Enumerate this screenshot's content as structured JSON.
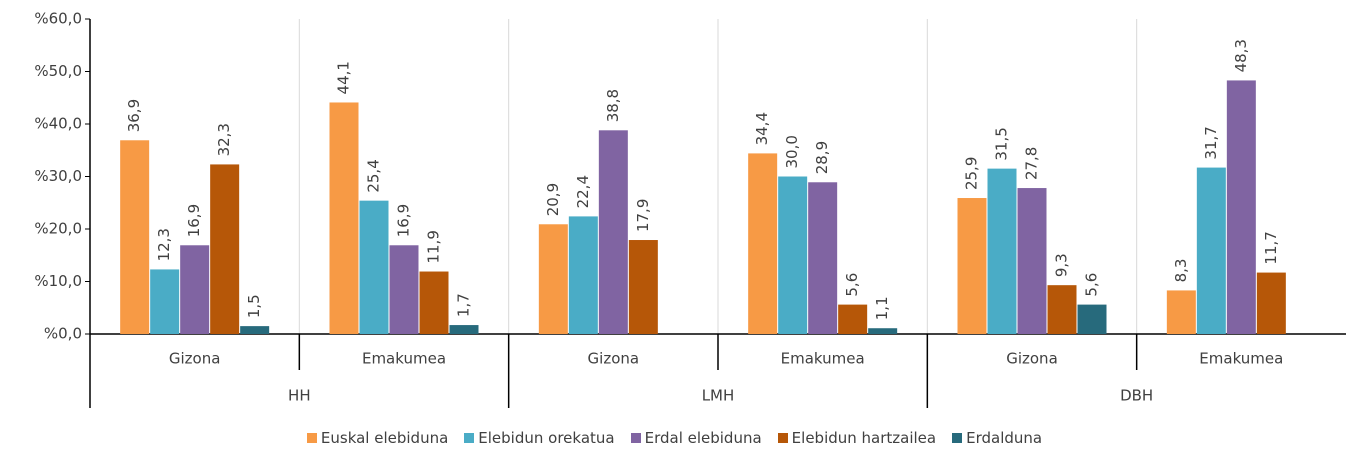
{
  "chart_data": {
    "type": "bar",
    "categories": [
      "Gizona",
      "Emakumea",
      "Gizona",
      "Emakumea",
      "Gizona",
      "Emakumea"
    ],
    "groups": [
      "HH",
      "LMH",
      "DBH"
    ],
    "series": [
      {
        "name": "Euskal elebiduna",
        "color": "#f79a45",
        "values": [
          36.9,
          44.1,
          20.9,
          34.4,
          25.9,
          8.3
        ],
        "value_labels": [
          "36,9",
          "44,1",
          "20,9",
          "34,4",
          "25,9",
          "8,3"
        ]
      },
      {
        "name": "Elebidun orekatua",
        "color": "#4aacc6",
        "values": [
          12.3,
          25.4,
          22.4,
          30.0,
          31.5,
          31.7
        ],
        "value_labels": [
          "12,3",
          "25,4",
          "22,4",
          "30,0",
          "31,5",
          "31,7"
        ]
      },
      {
        "name": "Erdal elebiduna",
        "color": "#8064a2",
        "values": [
          16.9,
          16.9,
          38.8,
          28.9,
          27.8,
          48.3
        ],
        "value_labels": [
          "16,9",
          "16,9",
          "38,8",
          "28,9",
          "27,8",
          "48,3"
        ]
      },
      {
        "name": "Elebidun hartzailea",
        "color": "#b65708",
        "values": [
          32.3,
          11.9,
          17.9,
          5.6,
          9.3,
          11.7
        ],
        "value_labels": [
          "32,3",
          "11,9",
          "17,9",
          "5,6",
          "9,3",
          "11,7"
        ]
      },
      {
        "name": "Erdalduna",
        "color": "#276a7c",
        "values": [
          1.5,
          1.7,
          null,
          1.1,
          5.6,
          null
        ],
        "value_labels": [
          "1,5",
          "1,7",
          null,
          "1,1",
          "5,6",
          null
        ]
      }
    ],
    "ylim": [
      0,
      60
    ],
    "yticks": [
      {
        "value": 0,
        "label": "%0,0"
      },
      {
        "value": 10,
        "label": "%10,0"
      },
      {
        "value": 20,
        "label": "%20,0"
      },
      {
        "value": 30,
        "label": "%30,0"
      },
      {
        "value": 40,
        "label": "%40,0"
      },
      {
        "value": 50,
        "label": "%50,0"
      },
      {
        "value": 60,
        "label": "%60,0"
      }
    ],
    "legend": "bottom"
  }
}
